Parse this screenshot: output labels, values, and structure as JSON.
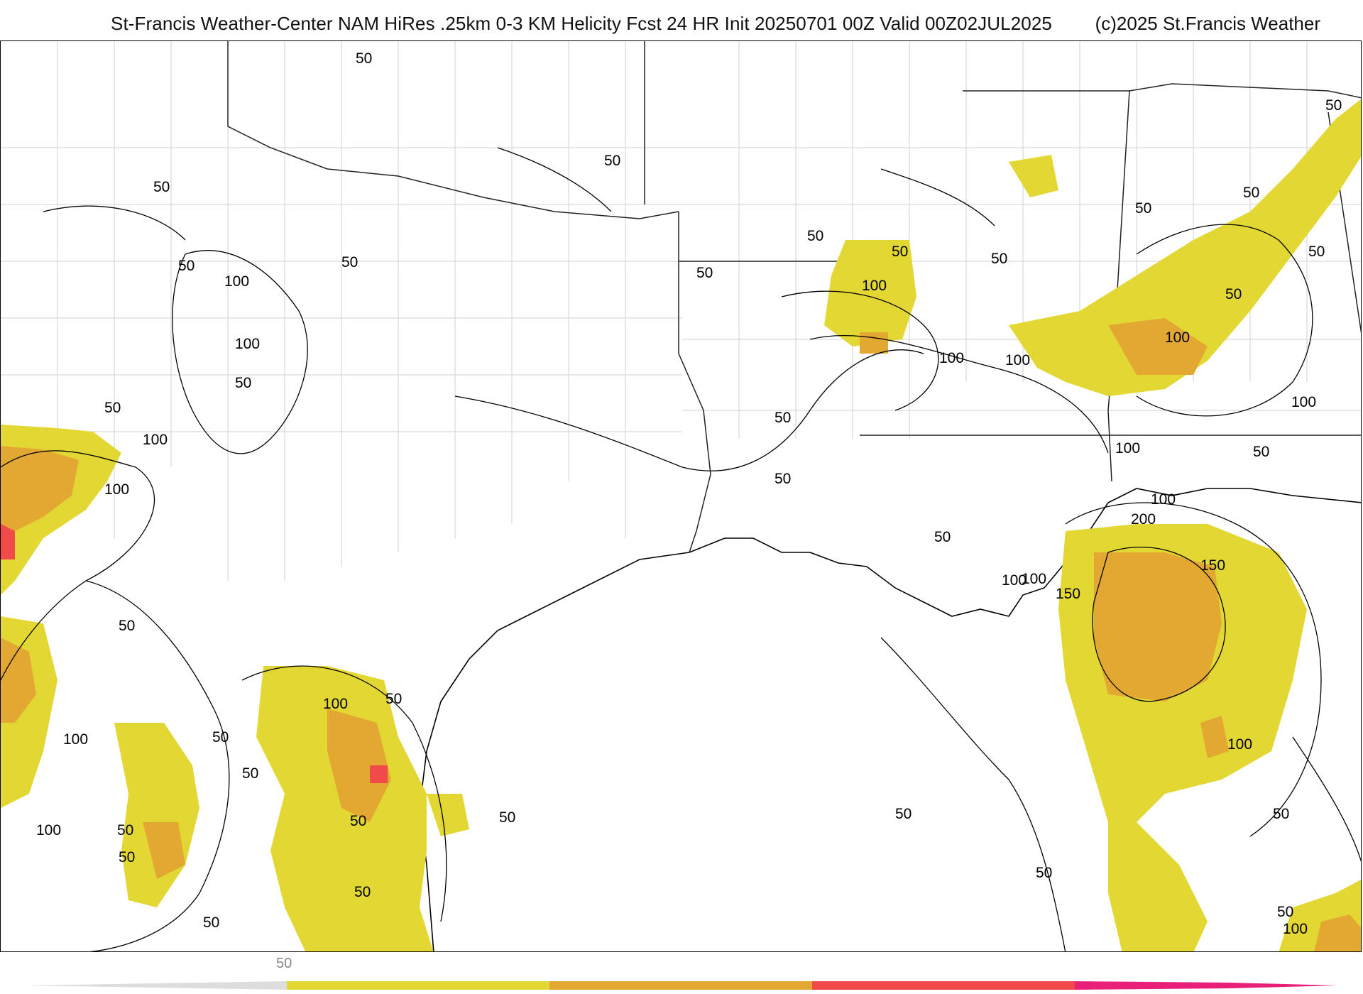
{
  "header": {
    "title": "St-Francis Weather-Center NAM HiRes .25km 0-3 KM Helicity Fcst 24 HR Init 20250701 00Z  Valid 00Z02JUL2025",
    "copyright": "(c)2025 St.Francis Weather"
  },
  "colors": {
    "level_50": "#e3d833",
    "level_100": "#e3a832",
    "level_150": "#f04a4a",
    "level_200": "#e8207a",
    "contour": "#000000",
    "county_lines": "#cfcfcf",
    "state_lines": "#222222"
  },
  "colorbar": {
    "ticks": [
      "50"
    ]
  },
  "contour_labels": [
    "50",
    "50",
    "50",
    "50",
    "50",
    "50",
    "100",
    "100",
    "100",
    "50",
    "50",
    "100",
    "100",
    "100",
    "50",
    "50",
    "50",
    "100",
    "50",
    "50",
    "100",
    "50",
    "50",
    "50",
    "50",
    "100",
    "50",
    "50",
    "50",
    "100",
    "100",
    "50",
    "100",
    "200",
    "150",
    "100",
    "150",
    "50",
    "100",
    "50",
    "50",
    "100",
    "50",
    "50",
    "50",
    "100",
    "50",
    "100",
    "50",
    "50",
    "100",
    "50",
    "50",
    "50",
    "50"
  ]
}
